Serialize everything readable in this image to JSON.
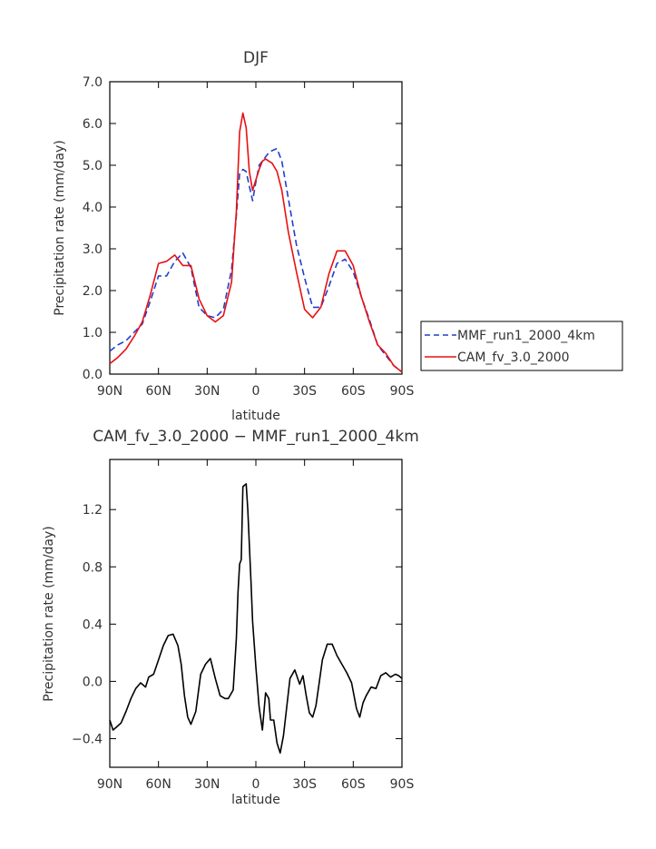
{
  "chart_data": [
    {
      "type": "line",
      "title": "DJF",
      "xlabel": "latitude",
      "ylabel": "Precipitation rate (mm/day)",
      "xlim": [
        -90,
        90
      ],
      "ylim": [
        0,
        7
      ],
      "x_tick_values": [
        -90,
        -60,
        -30,
        0,
        30,
        60,
        90
      ],
      "x_tick_labels": [
        "90N",
        "60N",
        "30N",
        "0",
        "30S",
        "60S",
        "90S"
      ],
      "y_tick_values": [
        0,
        1,
        2,
        3,
        4,
        5,
        6,
        7
      ],
      "y_tick_labels": [
        "0.0",
        "1.0",
        "2.0",
        "3.0",
        "4.0",
        "5.0",
        "6.0",
        "7.0"
      ],
      "grid": false,
      "legend_position": "right",
      "series": [
        {
          "name": "MMF_run1_2000_4km",
          "color": "#1f3fcf",
          "dash": "dashed",
          "x": [
            -90,
            -85,
            -80,
            -75,
            -70,
            -65,
            -60,
            -55,
            -50,
            -45,
            -40,
            -35,
            -30,
            -25,
            -20,
            -15,
            -12,
            -10,
            -8,
            -6,
            -4,
            -2,
            0,
            2,
            4,
            6,
            8,
            10,
            13,
            16,
            20,
            25,
            30,
            35,
            40,
            45,
            50,
            55,
            60,
            65,
            70,
            75,
            80,
            85,
            90
          ],
          "y": [
            0.55,
            0.7,
            0.8,
            1.0,
            1.2,
            1.75,
            2.35,
            2.35,
            2.7,
            2.9,
            2.55,
            1.6,
            1.4,
            1.35,
            1.55,
            2.5,
            3.8,
            4.8,
            4.9,
            4.85,
            4.5,
            4.15,
            4.6,
            5.0,
            5.1,
            5.2,
            5.3,
            5.35,
            5.4,
            5.1,
            4.2,
            3.1,
            2.3,
            1.6,
            1.6,
            2.1,
            2.65,
            2.75,
            2.45,
            1.85,
            1.3,
            0.7,
            0.45,
            0.2,
            0.05
          ]
        },
        {
          "name": "CAM_fv_3.0_2000",
          "color": "#e81010",
          "dash": "solid",
          "x": [
            -90,
            -85,
            -80,
            -75,
            -70,
            -65,
            -60,
            -55,
            -50,
            -45,
            -40,
            -35,
            -30,
            -25,
            -20,
            -15,
            -12,
            -10,
            -8,
            -6,
            -4,
            -2,
            0,
            2,
            4,
            6,
            8,
            10,
            13,
            16,
            20,
            25,
            30,
            35,
            40,
            45,
            50,
            55,
            60,
            65,
            70,
            75,
            80,
            85,
            90
          ],
          "y": [
            0.25,
            0.4,
            0.6,
            0.9,
            1.25,
            1.9,
            2.65,
            2.7,
            2.85,
            2.6,
            2.6,
            1.8,
            1.4,
            1.25,
            1.4,
            2.2,
            3.9,
            5.8,
            6.25,
            5.9,
            4.85,
            4.4,
            4.65,
            4.9,
            5.1,
            5.15,
            5.1,
            5.05,
            4.85,
            4.4,
            3.4,
            2.45,
            1.55,
            1.35,
            1.6,
            2.4,
            2.95,
            2.95,
            2.6,
            1.85,
            1.25,
            0.7,
            0.5,
            0.2,
            0.05
          ]
        }
      ]
    },
    {
      "type": "line",
      "title": "CAM_fv_3.0_2000 − MMF_run1_2000_4km",
      "xlabel": "latitude",
      "ylabel": "Precipitation rate (mm/day)",
      "xlim": [
        -90,
        90
      ],
      "ylim": [
        -0.6,
        1.55
      ],
      "x_tick_values": [
        -90,
        -60,
        -30,
        0,
        30,
        60,
        90
      ],
      "x_tick_labels": [
        "90N",
        "60N",
        "30N",
        "0",
        "30S",
        "60S",
        "90S"
      ],
      "y_tick_values": [
        -0.4,
        0,
        0.4,
        0.8,
        1.2
      ],
      "y_tick_labels": [
        "−0.4",
        "0.0",
        "0.4",
        "0.8",
        "1.2"
      ],
      "grid": false,
      "series": [
        {
          "color": "#000000",
          "dash": "solid",
          "x": [
            -90,
            -88,
            -86,
            -83,
            -80,
            -77,
            -74,
            -71,
            -68,
            -66,
            -63,
            -60,
            -57,
            -54,
            -51,
            -48,
            -46,
            -44,
            -42,
            -40,
            -37,
            -34,
            -31,
            -28,
            -25,
            -22,
            -19,
            -17,
            -14,
            -12,
            -11,
            -10,
            -9,
            -8,
            -7,
            -6,
            -5,
            -3,
            -2,
            0,
            2,
            4,
            6,
            8,
            9,
            11,
            13,
            15,
            17,
            19,
            21,
            24,
            27,
            29,
            31,
            33,
            35,
            37,
            39,
            41,
            44,
            47,
            50,
            53,
            56,
            59,
            62,
            64,
            66,
            68,
            71,
            74,
            77,
            80,
            83,
            86,
            88,
            90
          ],
          "y": [
            -0.27,
            -0.34,
            -0.32,
            -0.29,
            -0.21,
            -0.12,
            -0.05,
            -0.01,
            -0.04,
            0.03,
            0.05,
            0.15,
            0.25,
            0.32,
            0.33,
            0.25,
            0.12,
            -0.1,
            -0.25,
            -0.3,
            -0.21,
            0.05,
            0.12,
            0.16,
            0.02,
            -0.1,
            -0.12,
            -0.12,
            -0.06,
            0.3,
            0.62,
            0.82,
            0.85,
            1.36,
            1.37,
            1.38,
            1.2,
            0.7,
            0.42,
            0.1,
            -0.18,
            -0.34,
            -0.08,
            -0.12,
            -0.27,
            -0.27,
            -0.43,
            -0.5,
            -0.38,
            -0.18,
            0.02,
            0.08,
            -0.02,
            0.04,
            -0.1,
            -0.22,
            -0.25,
            -0.17,
            -0.01,
            0.15,
            0.26,
            0.26,
            0.18,
            0.12,
            0.06,
            -0.01,
            -0.19,
            -0.25,
            -0.15,
            -0.1,
            -0.04,
            -0.05,
            0.04,
            0.06,
            0.03,
            0.05,
            0.04,
            0.02
          ]
        }
      ]
    }
  ]
}
